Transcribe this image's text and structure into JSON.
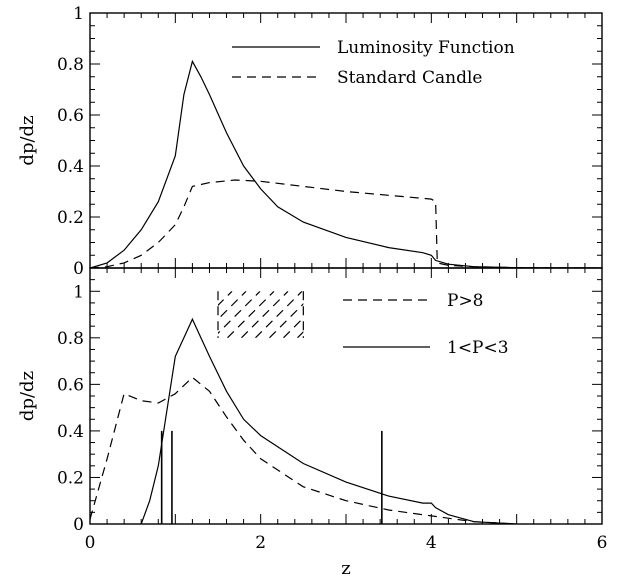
{
  "chart_data": [
    {
      "type": "line",
      "xlim": [
        0,
        6
      ],
      "ylim": [
        0,
        1
      ],
      "xlabel": "z",
      "ylabel": "dp/dz",
      "yticks": [
        "0",
        "0.2",
        "0.4",
        "0.6",
        "0.8",
        "1"
      ],
      "xticks": [],
      "legend_position": "top-right",
      "series": [
        {
          "name": "Luminosity Function",
          "style": "solid",
          "x": [
            0,
            0.2,
            0.4,
            0.6,
            0.8,
            1.0,
            1.1,
            1.2,
            1.3,
            1.4,
            1.6,
            1.8,
            2.0,
            2.2,
            2.5,
            3.0,
            3.5,
            3.9,
            4.0,
            4.05,
            4.2,
            4.5,
            5.0,
            6.0
          ],
          "y": [
            0,
            0.02,
            0.07,
            0.15,
            0.26,
            0.44,
            0.68,
            0.81,
            0.75,
            0.68,
            0.53,
            0.4,
            0.31,
            0.24,
            0.18,
            0.12,
            0.08,
            0.06,
            0.05,
            0.03,
            0.015,
            0.005,
            0.001,
            0
          ]
        },
        {
          "name": "Standard Candle",
          "style": "dashed",
          "x": [
            0,
            0.2,
            0.4,
            0.6,
            0.8,
            1.0,
            1.1,
            1.2,
            1.4,
            1.7,
            2.0,
            2.5,
            3.0,
            3.5,
            4.0,
            4.05,
            4.07,
            4.2,
            4.5,
            5.0,
            6.0
          ],
          "y": [
            0,
            0.005,
            0.02,
            0.05,
            0.1,
            0.17,
            0.24,
            0.32,
            0.335,
            0.345,
            0.34,
            0.32,
            0.3,
            0.285,
            0.27,
            0.26,
            0.02,
            0.01,
            0.005,
            0.001,
            0
          ]
        }
      ]
    },
    {
      "type": "line",
      "xlim": [
        0,
        6
      ],
      "ylim": [
        0,
        1.1
      ],
      "xlabel": "z",
      "ylabel": "dp/dz",
      "yticks": [
        "0",
        "0.2",
        "0.4",
        "0.6",
        "0.8",
        "1"
      ],
      "xticks": [
        "0",
        "2",
        "4",
        "6"
      ],
      "legend_position": "top-right",
      "series": [
        {
          "name": "P>8",
          "style": "dashed",
          "x": [
            0,
            0.2,
            0.4,
            0.6,
            0.8,
            1.0,
            1.2,
            1.4,
            1.6,
            1.8,
            2.0,
            2.5,
            3.0,
            3.5,
            4.0,
            4.5,
            5.0
          ],
          "y": [
            0.02,
            0.28,
            0.56,
            0.53,
            0.52,
            0.56,
            0.63,
            0.57,
            0.46,
            0.36,
            0.28,
            0.16,
            0.1,
            0.06,
            0.035,
            0.01,
            0
          ]
        },
        {
          "name": "1<P<3",
          "style": "solid",
          "x": [
            0.6,
            0.7,
            0.8,
            1.0,
            1.1,
            1.2,
            1.3,
            1.4,
            1.6,
            1.8,
            2.0,
            2.5,
            3.0,
            3.5,
            3.9,
            4.0,
            4.05,
            4.2,
            4.5,
            5.0
          ],
          "y": [
            0,
            0.1,
            0.25,
            0.72,
            0.8,
            0.88,
            0.8,
            0.72,
            0.57,
            0.45,
            0.38,
            0.26,
            0.18,
            0.12,
            0.09,
            0.09,
            0.07,
            0.04,
            0.01,
            0
          ]
        }
      ],
      "markers": {
        "x": [
          0.84,
          0.96,
          3.42
        ],
        "y": [
          0.4,
          0.4,
          0.4
        ]
      },
      "shaded_region": {
        "x": [
          1.5,
          2.5
        ],
        "y": [
          0.8,
          1.0
        ]
      }
    }
  ]
}
